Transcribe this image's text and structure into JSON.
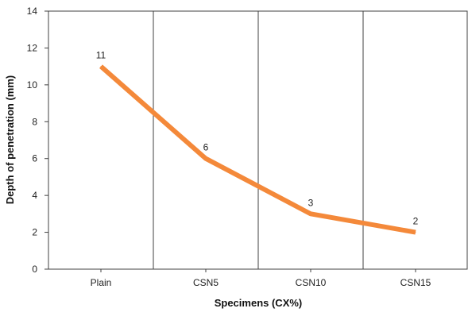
{
  "chart_data": {
    "type": "line",
    "categories": [
      "Plain",
      "CSN5",
      "CSN10",
      "CSN15"
    ],
    "values": [
      11,
      6,
      3,
      2
    ],
    "data_labels": [
      "11",
      "6",
      "3",
      "2"
    ],
    "title": "",
    "xlabel": "Specimens (CX%)",
    "ylabel": "Depth of penetration  (mm)",
    "ylim": [
      0,
      14
    ],
    "yticks": [
      "0",
      "2",
      "4",
      "6",
      "8",
      "10",
      "12",
      "14"
    ],
    "grid": "vertical gridlines at categories",
    "legend": "none",
    "line_color": "#F4893A",
    "grid_color": "#404040"
  }
}
